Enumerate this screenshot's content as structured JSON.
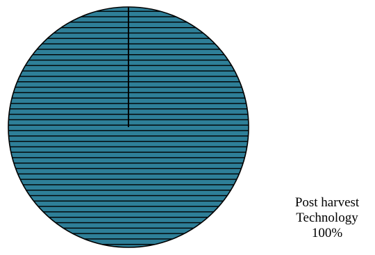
{
  "chart_data": {
    "type": "pie",
    "slices": [
      {
        "label_lines": [
          "Post harvest",
          "Technology"
        ],
        "percent_text": "100%",
        "value": 100
      }
    ],
    "colors": {
      "fill": "#2E7F98",
      "hatch": "#000000",
      "stroke": "#000000"
    },
    "fill_pattern": "horizontal-lines"
  }
}
